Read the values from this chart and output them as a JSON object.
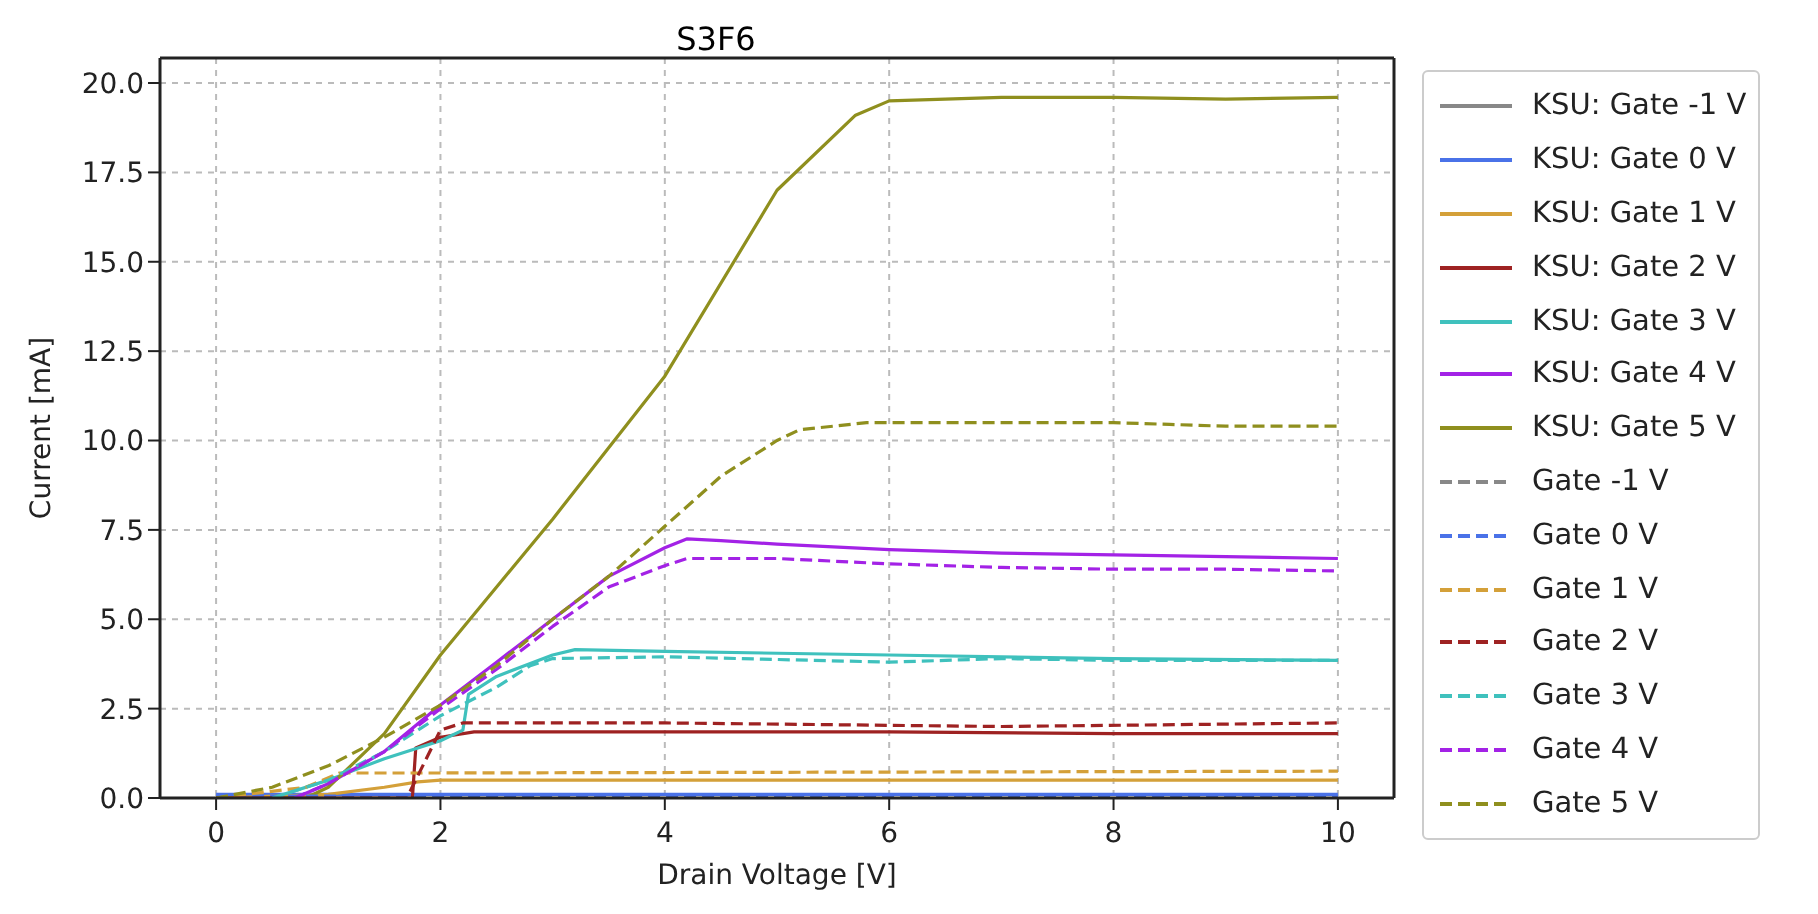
{
  "chart_data": {
    "type": "line",
    "title": "S3F6",
    "xlabel": "Drain Voltage [V]",
    "ylabel": "Current [mA]",
    "xlim": [
      -0.5,
      10.5
    ],
    "xticks": [
      0,
      2,
      4,
      6,
      8,
      10
    ],
    "ylim": [
      0,
      20.7
    ],
    "yticks": [
      {
        "value": 0,
        "label": "0.0"
      },
      {
        "value": 2.5,
        "label": "2.5"
      },
      {
        "value": 5,
        "label": "5.0"
      },
      {
        "value": 7.5,
        "label": "7.5"
      },
      {
        "value": 10,
        "label": "10.0"
      },
      {
        "value": 12.5,
        "label": "12.5"
      },
      {
        "value": 15,
        "label": "15.0"
      },
      {
        "value": 17.5,
        "label": "17.5"
      },
      {
        "value": 20,
        "label": "20.0"
      }
    ],
    "grid": true,
    "legend": "right",
    "series": [
      {
        "name": "KSU: Gate -1 V",
        "color": "#888888",
        "line_style": "solid"
      },
      {
        "name": "KSU: Gate 0 V",
        "color": "#4a72e8",
        "line_style": "solid",
        "x": [
          0,
          10
        ],
        "values": [
          0.1,
          0.1
        ]
      },
      {
        "name": "KSU: Gate 1 V",
        "color": "#d4a039",
        "line_style": "solid",
        "x": [
          0,
          1,
          1.5,
          1.8,
          2,
          3,
          10
        ],
        "values": [
          0,
          0.1,
          0.3,
          0.45,
          0.5,
          0.5,
          0.5
        ]
      },
      {
        "name": "KSU: Gate 2 V",
        "color": "#9e2222",
        "line_style": "solid",
        "x": [
          0,
          1.75,
          1.78,
          2,
          2.3,
          4,
          6,
          8,
          10
        ],
        "values": [
          0,
          0,
          1.4,
          1.7,
          1.85,
          1.85,
          1.85,
          1.8,
          1.8
        ]
      },
      {
        "name": "KSU: Gate 3 V",
        "color": "#3fc1bd",
        "line_style": "solid",
        "x": [
          0.5,
          1,
          1.5,
          2,
          2.2,
          2.25,
          2.5,
          3,
          3.2,
          4,
          6,
          8,
          10
        ],
        "values": [
          0,
          0.5,
          1.1,
          1.6,
          1.9,
          2.9,
          3.4,
          4,
          4.15,
          4.1,
          4,
          3.9,
          3.85
        ]
      },
      {
        "name": "KSU: Gate 4 V",
        "color": "#a322e6",
        "line_style": "solid",
        "x": [
          0.7,
          1,
          1.5,
          2,
          2.5,
          3,
          3.5,
          4,
          4.2,
          4.5,
          5,
          6,
          7,
          8,
          9,
          10
        ],
        "values": [
          0,
          0.4,
          1.3,
          2.6,
          3.8,
          5,
          6.2,
          7,
          7.25,
          7.2,
          7.1,
          6.95,
          6.85,
          6.8,
          6.75,
          6.7
        ]
      },
      {
        "name": "KSU: Gate 5 V",
        "color": "#8f8f1e",
        "line_style": "solid",
        "x": [
          0.8,
          1,
          1.5,
          2,
          3,
          4,
          5,
          5.7,
          6,
          7,
          8,
          9,
          10
        ],
        "values": [
          0,
          0.3,
          1.8,
          4,
          7.8,
          11.8,
          17,
          19.1,
          19.5,
          19.6,
          19.6,
          19.55,
          19.6
        ]
      },
      {
        "name": "Gate -1 V",
        "color": "#888888",
        "line_style": "dashed"
      },
      {
        "name": "Gate 0 V",
        "color": "#4a72e8",
        "line_style": "dashed",
        "x": [
          0,
          10
        ],
        "values": [
          0.05,
          0.05
        ]
      },
      {
        "name": "Gate 1 V",
        "color": "#d4a039",
        "line_style": "dashed",
        "x": [
          0,
          0.8,
          1.1,
          2,
          10
        ],
        "values": [
          0,
          0.3,
          0.7,
          0.7,
          0.75
        ]
      },
      {
        "name": "Gate 2 V",
        "color": "#9e2222",
        "line_style": "dashed",
        "x": [
          0,
          1.7,
          2,
          2.2,
          4,
          7,
          10
        ],
        "values": [
          0,
          0,
          1.9,
          2.1,
          2.1,
          2,
          2.1
        ]
      },
      {
        "name": "Gate 3 V",
        "color": "#3fc1bd",
        "line_style": "dashed",
        "x": [
          0.5,
          1,
          1.5,
          2,
          2.5,
          2.8,
          3,
          4,
          6,
          7,
          8,
          10
        ],
        "values": [
          0,
          0.5,
          1.3,
          2.3,
          3.1,
          3.7,
          3.9,
          3.95,
          3.8,
          3.9,
          3.85,
          3.85
        ]
      },
      {
        "name": "Gate 4 V",
        "color": "#a322e6",
        "line_style": "dashed",
        "x": [
          0.7,
          1,
          1.5,
          2,
          2.5,
          3,
          3.5,
          4,
          4.2,
          5,
          6,
          7,
          8,
          9,
          10
        ],
        "values": [
          0,
          0.4,
          1.3,
          2.5,
          3.6,
          4.8,
          5.9,
          6.5,
          6.7,
          6.7,
          6.55,
          6.45,
          6.4,
          6.4,
          6.35
        ]
      },
      {
        "name": "Gate 5 V",
        "color": "#8f8f1e",
        "line_style": "dashed",
        "x": [
          0,
          0.5,
          1,
          1.5,
          2,
          2.5,
          3,
          3.5,
          4,
          4.5,
          5,
          5.2,
          5.8,
          7,
          8,
          8.5,
          9,
          10
        ],
        "values": [
          0,
          0.3,
          0.9,
          1.7,
          2.6,
          3.7,
          5,
          6.2,
          7.6,
          9,
          10,
          10.3,
          10.5,
          10.5,
          10.5,
          10.45,
          10.4,
          10.4
        ]
      }
    ]
  }
}
